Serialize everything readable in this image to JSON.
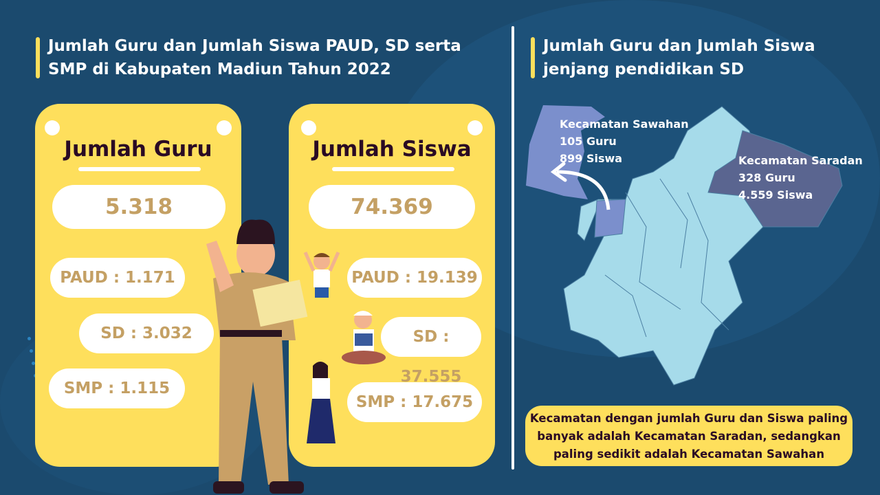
{
  "left_title": "Jumlah Guru dan Jumlah Siswa PAUD, SD serta SMP di Kabupaten Madiun Tahun 2022",
  "right_title": "Jumlah Guru dan Jumlah Siswa jenjang pendidikan SD",
  "guru": {
    "heading": "Jumlah Guru",
    "total": "5.318",
    "paud": "PAUD : 1.171",
    "sd": "SD : 3.032",
    "smp": "SMP : 1.115"
  },
  "siswa": {
    "heading": "Jumlah Siswa",
    "total": "74.369",
    "paud": "PAUD : 19.139",
    "sd": "SD : 37.555",
    "smp": "SMP : 17.675"
  },
  "map": {
    "sawahan": {
      "name": "Kecamatan Sawahan",
      "guru": "105 Guru",
      "siswa": "899 Siswa",
      "color": "#7b8fcc"
    },
    "saradan": {
      "name": "Kecamatan Saradan",
      "guru": "328 Guru",
      "siswa": "4.559 Siswa",
      "color": "#5a6590"
    },
    "base_color": "#a6dbea"
  },
  "note": "Kecamatan dengan jumlah Guru dan Siswa paling banyak adalah Kecamatan Saradan, sedangkan paling sedikit adalah Kecamatan Sawahan",
  "colors": {
    "background": "#1b4a6e",
    "accent": "#fedf5c",
    "number": "#c4a064",
    "heading": "#2a0a24"
  }
}
